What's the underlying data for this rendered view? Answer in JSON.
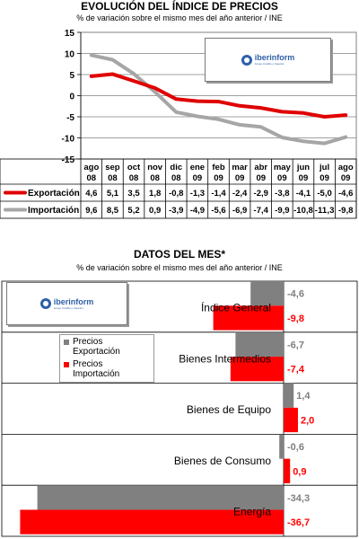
{
  "top": {
    "title": "EVOLUCIÓN DEL ÍNDICE DE PRECIOS",
    "subtitle": "% de variación sobre el mismo mes del año anterior / INE"
  },
  "bottom": {
    "title": "DATOS DEL MES*",
    "subtitle": "% de variación sobre el mismo mes del año anterior / INE",
    "legend": [
      "Precios Exportación",
      "Precios Importación"
    ]
  },
  "logo": {
    "name": "iberinform",
    "tagline": "Grupo Crédito y Caución"
  },
  "colors": {
    "export": "#e00000",
    "import": "#a6a6a6",
    "export_bar": "#808080",
    "import_bar": "#ff0000"
  },
  "chart_data": [
    {
      "type": "line",
      "title": "EVOLUCIÓN DEL ÍNDICE DE PRECIOS",
      "subtitle": "% de variación sobre el mismo mes del año anterior / INE",
      "categories": [
        "ago 08",
        "sep 08",
        "oct 08",
        "nov 08",
        "dic 08",
        "ene 09",
        "feb 09",
        "mar 09",
        "abr 09",
        "may 09",
        "jun 09",
        "jul 09",
        "ago 09"
      ],
      "series": [
        {
          "name": "Exportación",
          "values": [
            4.6,
            5.1,
            3.5,
            1.8,
            -0.8,
            -1.3,
            -1.4,
            -2.4,
            -2.9,
            -3.8,
            -4.1,
            -5.0,
            -4.6
          ]
        },
        {
          "name": "Importación",
          "values": [
            9.6,
            8.5,
            5.2,
            0.9,
            -3.9,
            -4.9,
            -5.6,
            -6.9,
            -7.4,
            -9.9,
            -10.8,
            -11.3,
            -9.8
          ]
        }
      ],
      "series_labels": [
        "Exportación",
        "Importación"
      ],
      "value_labels": [
        [
          "4,6",
          "5,1",
          "3,5",
          "1,8",
          "-0,8",
          "-1,3",
          "-1,4",
          "-2,4",
          "-2,9",
          "-3,8",
          "-4,1",
          "-5,0",
          "-4,6"
        ],
        [
          "9,6",
          "8,5",
          "5,2",
          "0,9",
          "-3,9",
          "-4,9",
          "-5,6",
          "-6,9",
          "-7,4",
          "-9,9",
          "-10,8",
          "-11,3",
          "-9,8"
        ]
      ],
      "ylim": [
        -15,
        15
      ],
      "yticks": [
        15,
        10,
        5,
        0,
        -5,
        -10,
        -15
      ],
      "grid": true
    },
    {
      "type": "bar",
      "title": "DATOS DEL MES*",
      "subtitle": "% de variación sobre el mismo mes del año anterior / INE",
      "categories": [
        "Índice General",
        "Bienes Intermedios",
        "Bienes de Equipo",
        "Bienes de Consumo",
        "Energía"
      ],
      "series": [
        {
          "name": "Precios Exportación",
          "values": [
            -4.6,
            -6.7,
            1.4,
            -0.6,
            -34.3
          ],
          "labels": [
            "-4,6",
            "-6,7",
            "1,4",
            "-0,6",
            "-34,3"
          ]
        },
        {
          "name": "Precios Importación",
          "values": [
            -9.8,
            -7.4,
            2.0,
            0.9,
            -36.7
          ],
          "labels": [
            "-9,8",
            "-7,4",
            "2,0",
            "0,9",
            "-36,7"
          ]
        }
      ],
      "orientation": "horizontal"
    }
  ]
}
